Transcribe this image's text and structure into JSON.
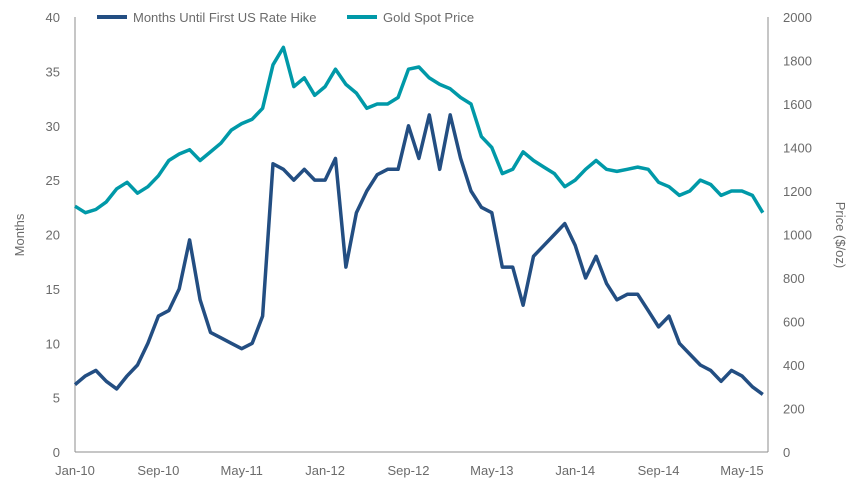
{
  "chart_data": {
    "type": "line",
    "title": "",
    "xlabel": "",
    "ylabel": "Months",
    "ylabel_right": "Price ($/oz)",
    "ylim": [
      0,
      40
    ],
    "ylim_right": [
      0,
      2000
    ],
    "yticks": [
      0,
      5,
      10,
      15,
      20,
      25,
      30,
      35,
      40
    ],
    "yticks_right": [
      0,
      200,
      400,
      600,
      800,
      1000,
      1200,
      1400,
      1600,
      1800,
      2000
    ],
    "xticks": [
      "Jan-10",
      "Sep-10",
      "May-11",
      "Jan-12",
      "Sep-12",
      "May-13",
      "Jan-14",
      "Sep-14",
      "May-15"
    ],
    "xlim": [
      "2010-01",
      "2015-07"
    ],
    "grid": false,
    "legend_position": "top",
    "x": [
      "2010-01",
      "2010-02",
      "2010-03",
      "2010-04",
      "2010-05",
      "2010-06",
      "2010-07",
      "2010-08",
      "2010-09",
      "2010-10",
      "2010-11",
      "2010-12",
      "2011-01",
      "2011-02",
      "2011-03",
      "2011-04",
      "2011-05",
      "2011-06",
      "2011-07",
      "2011-08",
      "2011-09",
      "2011-10",
      "2011-11",
      "2011-12",
      "2012-01",
      "2012-02",
      "2012-03",
      "2012-04",
      "2012-05",
      "2012-06",
      "2012-07",
      "2012-08",
      "2012-09",
      "2012-10",
      "2012-11",
      "2012-12",
      "2013-01",
      "2013-02",
      "2013-03",
      "2013-04",
      "2013-05",
      "2013-06",
      "2013-07",
      "2013-08",
      "2013-09",
      "2013-10",
      "2013-11",
      "2013-12",
      "2014-01",
      "2014-02",
      "2014-03",
      "2014-04",
      "2014-05",
      "2014-06",
      "2014-07",
      "2014-08",
      "2014-09",
      "2014-10",
      "2014-11",
      "2014-12",
      "2015-01",
      "2015-02",
      "2015-03",
      "2015-04",
      "2015-05",
      "2015-06",
      "2015-07"
    ],
    "series": [
      {
        "name": "Months Until First US Rate Hike",
        "axis": "left",
        "color": "#234e82",
        "values": [
          6.2,
          7.0,
          7.5,
          6.5,
          5.8,
          7.0,
          8.0,
          10.0,
          12.5,
          13.0,
          15.0,
          19.5,
          14.0,
          11.0,
          10.5,
          10.0,
          9.5,
          10.0,
          12.5,
          26.5,
          26.0,
          25.0,
          26.0,
          25.0,
          25.0,
          27.0,
          17.0,
          22.0,
          24.0,
          25.5,
          26.0,
          26.0,
          30.0,
          27.0,
          31.0,
          26.0,
          31.0,
          27.0,
          24.0,
          22.5,
          22.0,
          17.0,
          17.0,
          13.5,
          18.0,
          19.0,
          20.0,
          21.0,
          19.0,
          16.0,
          18.0,
          15.5,
          14.0,
          14.5,
          14.5,
          13.0,
          11.5,
          12.5,
          10.0,
          9.0,
          8.0,
          7.5,
          6.5,
          7.5,
          7.0,
          6.0,
          5.3
        ]
      },
      {
        "name": "Gold Spot Price",
        "axis": "right",
        "color": "#0099a8",
        "values": [
          1130,
          1100,
          1115,
          1150,
          1210,
          1240,
          1190,
          1220,
          1270,
          1340,
          1370,
          1390,
          1340,
          1380,
          1420,
          1480,
          1510,
          1530,
          1580,
          1780,
          1860,
          1680,
          1720,
          1640,
          1680,
          1760,
          1690,
          1650,
          1580,
          1600,
          1600,
          1630,
          1760,
          1770,
          1720,
          1690,
          1670,
          1630,
          1600,
          1450,
          1400,
          1280,
          1300,
          1380,
          1340,
          1310,
          1280,
          1220,
          1250,
          1300,
          1340,
          1300,
          1290,
          1300,
          1310,
          1300,
          1240,
          1220,
          1180,
          1200,
          1250,
          1230,
          1180,
          1200,
          1200,
          1180,
          1100
        ]
      }
    ]
  }
}
